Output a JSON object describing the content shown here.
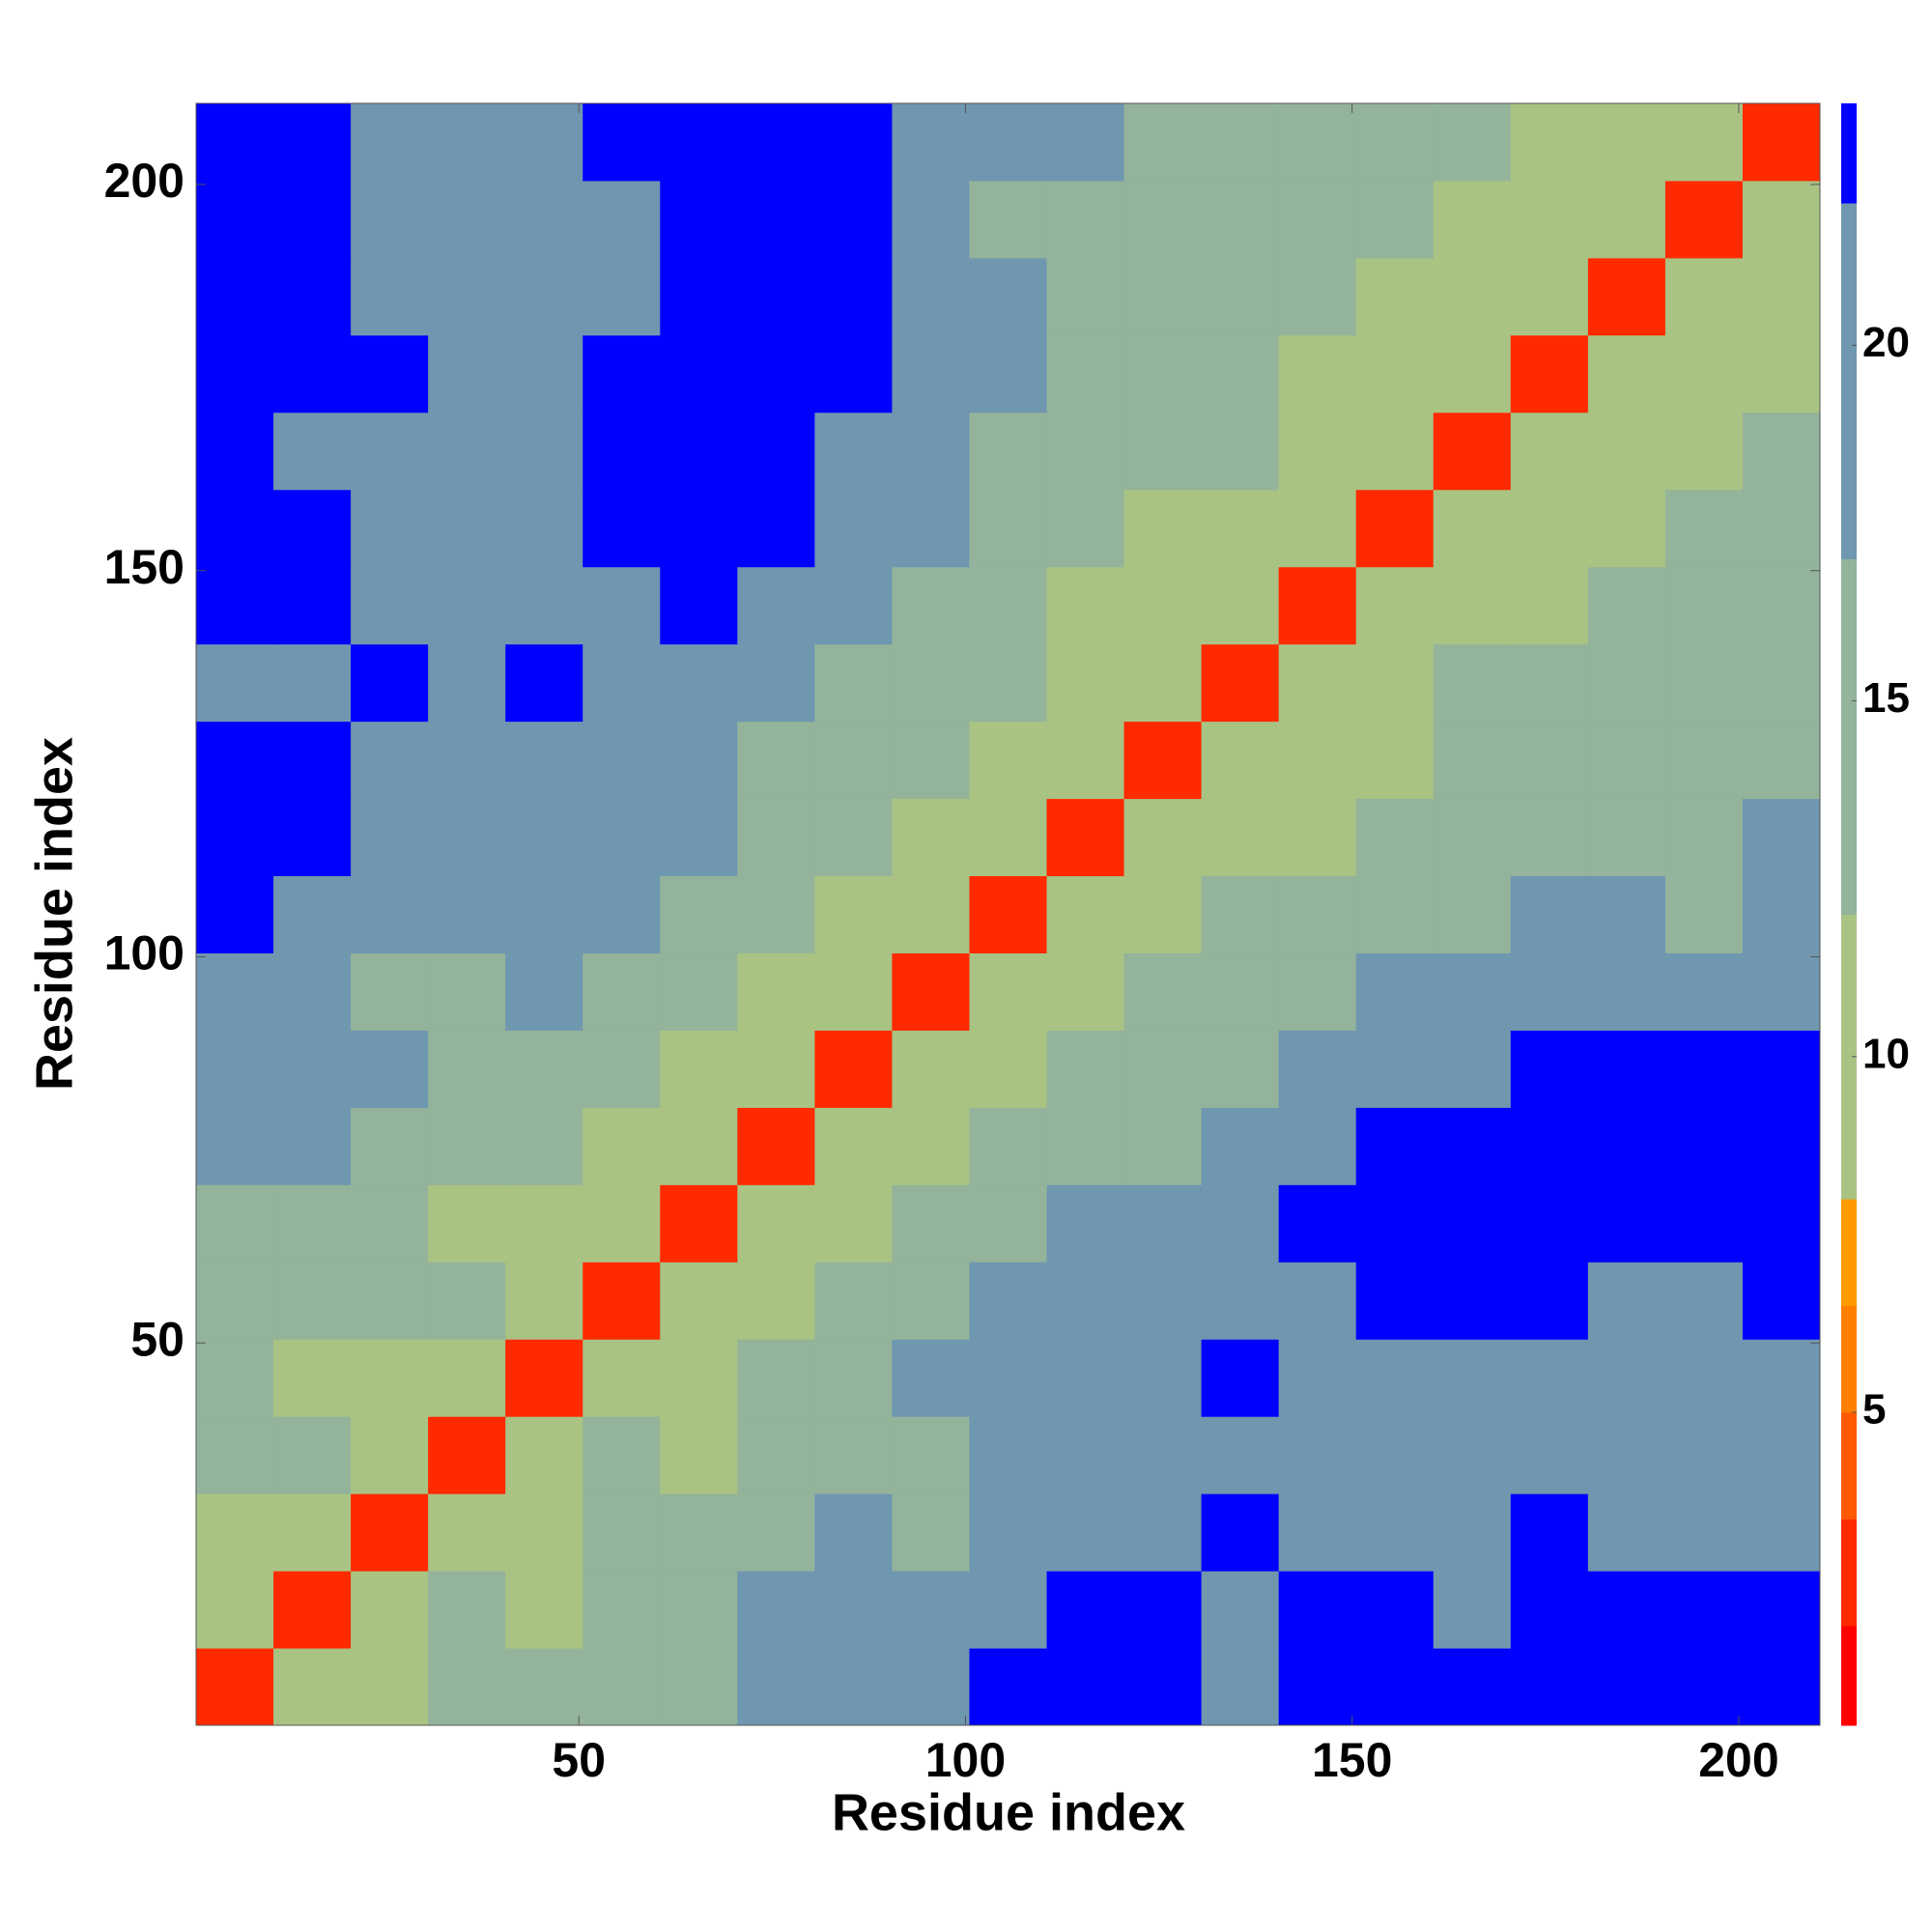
{
  "chart_data": {
    "type": "heatmap",
    "x_label": "Residue index",
    "y_label": "Residue index",
    "xbins": [
      0.5,
      10.5,
      20.5,
      30.5,
      40.5,
      50.5,
      60.5,
      70.5,
      80.5,
      90.5,
      100.5,
      110.5,
      120.5,
      130.5,
      140.5,
      150.5,
      160.5,
      170.5,
      180.5,
      190.5,
      200.5,
      210.5
    ],
    "ybins": [
      0.5,
      10.5,
      20.5,
      30.5,
      40.5,
      50.5,
      60.5,
      70.5,
      80.5,
      90.5,
      100.5,
      110.5,
      120.5,
      130.5,
      140.5,
      150.5,
      160.5,
      170.5,
      180.5,
      190.5,
      200.5,
      210.5
    ],
    "xlim": [
      0.5,
      210.5
    ],
    "ylim": [
      0.5,
      210.5
    ],
    "xticks": [
      50,
      100,
      150,
      200
    ],
    "yticks": [
      50,
      100,
      150,
      200
    ],
    "values": [
      [
        3,
        8,
        10,
        14,
        12,
        15,
        13,
        18,
        20,
        19,
        22,
        23,
        23,
        21,
        23,
        23,
        23,
        23,
        23,
        23,
        23
      ],
      [
        8,
        3,
        8,
        13,
        11,
        12,
        14,
        17,
        19,
        18,
        21,
        22,
        22,
        20,
        22,
        23,
        21,
        23,
        22,
        23,
        23
      ],
      [
        10,
        8,
        3,
        8,
        11,
        13,
        15,
        16,
        18,
        16,
        19,
        21,
        20,
        22,
        21,
        20,
        19,
        22,
        20,
        21,
        20
      ],
      [
        14,
        13,
        8,
        3,
        8,
        12,
        11,
        14,
        16,
        15,
        18,
        20,
        19,
        21,
        19,
        18,
        20,
        19,
        18,
        20,
        21
      ],
      [
        12,
        11,
        11,
        8,
        3,
        8,
        10,
        13,
        15,
        17,
        18,
        21,
        20,
        22,
        20,
        19,
        21,
        20,
        19,
        18,
        19
      ],
      [
        15,
        12,
        13,
        12,
        8,
        3,
        8,
        11,
        13,
        16,
        17,
        19,
        18,
        21,
        21,
        22,
        23,
        22,
        20,
        21,
        22
      ],
      [
        13,
        14,
        15,
        11,
        10,
        8,
        3,
        8,
        10,
        14,
        16,
        18,
        17,
        20,
        22,
        23,
        23,
        23,
        22,
        23,
        23
      ],
      [
        18,
        17,
        16,
        14,
        13,
        11,
        8,
        3,
        8,
        11,
        13,
        15,
        16,
        18,
        20,
        22,
        23,
        23,
        23,
        23,
        23
      ],
      [
        20,
        19,
        18,
        16,
        15,
        13,
        10,
        8,
        3,
        8,
        11,
        13,
        14,
        16,
        17,
        19,
        21,
        22,
        23,
        22,
        23
      ],
      [
        19,
        18,
        16,
        15,
        17,
        16,
        14,
        11,
        8,
        3,
        8,
        11,
        12,
        13,
        15,
        17,
        18,
        20,
        21,
        20,
        21
      ],
      [
        22,
        21,
        19,
        18,
        18,
        17,
        16,
        13,
        11,
        8,
        3,
        8,
        10,
        12,
        13,
        15,
        16,
        18,
        17,
        16,
        17
      ],
      [
        23,
        22,
        21,
        20,
        21,
        19,
        18,
        15,
        13,
        11,
        8,
        3,
        8,
        10,
        11,
        13,
        15,
        14,
        16,
        15,
        17
      ],
      [
        23,
        22,
        20,
        19,
        20,
        18,
        17,
        16,
        14,
        12,
        10,
        8,
        3,
        8,
        10,
        11,
        13,
        14,
        15,
        16,
        16
      ],
      [
        21,
        20,
        22,
        21,
        22,
        21,
        20,
        18,
        16,
        13,
        12,
        10,
        8,
        3,
        8,
        10,
        12,
        13,
        15,
        14,
        16
      ],
      [
        23,
        22,
        21,
        19,
        20,
        21,
        22,
        20,
        17,
        15,
        13,
        11,
        10,
        8,
        3,
        8,
        10,
        11,
        13,
        14,
        15
      ],
      [
        23,
        23,
        20,
        18,
        19,
        22,
        23,
        22,
        19,
        17,
        15,
        13,
        11,
        10,
        8,
        3,
        8,
        10,
        11,
        12,
        14
      ],
      [
        23,
        21,
        19,
        20,
        21,
        23,
        23,
        23,
        21,
        18,
        16,
        15,
        13,
        12,
        10,
        8,
        3,
        8,
        10,
        11,
        12
      ],
      [
        23,
        23,
        22,
        19,
        20,
        22,
        23,
        23,
        22,
        20,
        18,
        14,
        14,
        13,
        11,
        10,
        8,
        3,
        8,
        10,
        11
      ],
      [
        23,
        22,
        20,
        18,
        19,
        20,
        22,
        23,
        23,
        21,
        17,
        16,
        15,
        15,
        13,
        11,
        10,
        8,
        3,
        8,
        10
      ],
      [
        23,
        23,
        21,
        20,
        18,
        21,
        23,
        23,
        22,
        20,
        16,
        15,
        16,
        14,
        14,
        12,
        11,
        10,
        8,
        3,
        8
      ],
      [
        23,
        23,
        20,
        21,
        19,
        22,
        23,
        23,
        23,
        21,
        17,
        17,
        16,
        16,
        15,
        14,
        12,
        11,
        10,
        8,
        3
      ]
    ],
    "colorbar": {
      "lim": [
        0.6,
        23.4
      ],
      "ticks": [
        5,
        10,
        15,
        20
      ],
      "bounds": [
        0.6,
        2,
        3.5,
        5,
        6.5,
        8,
        12,
        17,
        22,
        23.4
      ],
      "colors": [
        "#ff0000",
        "#ff2a00",
        "#ff5a00",
        "#ff7f00",
        "#ff9a00",
        "#a9c383",
        "#93b39b",
        "#6f97b0",
        "#0000ff"
      ]
    }
  }
}
